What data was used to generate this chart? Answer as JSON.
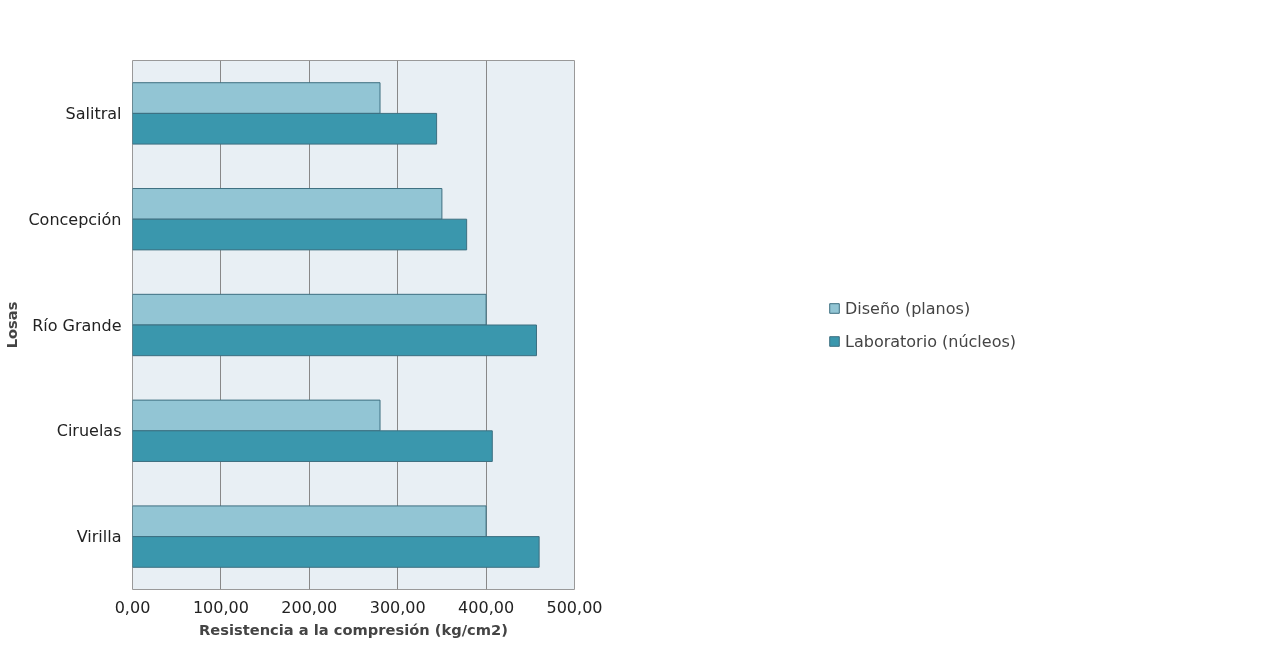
{
  "chart_data": {
    "type": "bar",
    "orientation": "horizontal",
    "xlabel": "Resistencia a la compresión (kg/cm2)",
    "ylabel": "Losas",
    "categories": [
      "Salitral",
      "Concepción",
      "Río Grande",
      "Ciruelas",
      "Virilla"
    ],
    "series": [
      {
        "name": "Diseño (planos)",
        "color": "#92c5d4",
        "values": [
          280,
          350,
          400,
          280,
          400
        ]
      },
      {
        "name": "Laboratorio (núcleos)",
        "color": "#3a97ad",
        "values": [
          344,
          378,
          457,
          407,
          460
        ]
      }
    ],
    "xlim": [
      0,
      500
    ],
    "xticks": [
      {
        "value": 0,
        "label": "0,00"
      },
      {
        "value": 100,
        "label": "100,00"
      },
      {
        "value": 200,
        "label": "200,00"
      },
      {
        "value": 300,
        "label": "300,00"
      },
      {
        "value": 400,
        "label": "400,00"
      },
      {
        "value": 500,
        "label": "500,00"
      }
    ],
    "grid": "x",
    "legend": "right"
  }
}
